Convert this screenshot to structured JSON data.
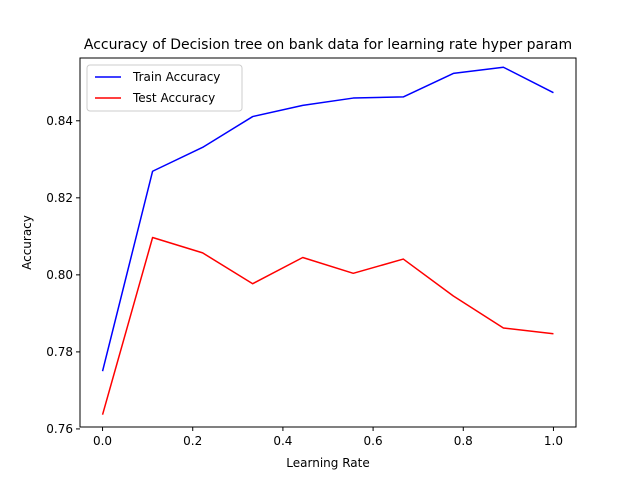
{
  "chart_data": {
    "type": "line",
    "title": "Accuracy of Decision tree on bank data for learning rate hyper param",
    "xlabel": "Learning Rate",
    "ylabel": "Accuracy",
    "xlim": [
      -0.05,
      1.05
    ],
    "ylim": [
      0.7605,
      0.8563
    ],
    "x_ticks": [
      0.0,
      0.2,
      0.4,
      0.6,
      0.8,
      1.0
    ],
    "x_tick_labels": [
      "0.0",
      "0.2",
      "0.4",
      "0.6",
      "0.8",
      "1.0"
    ],
    "y_ticks": [
      0.76,
      0.78,
      0.8,
      0.82,
      0.84
    ],
    "y_tick_labels": [
      "0.76",
      "0.78",
      "0.80",
      "0.82",
      "0.84"
    ],
    "grid": false,
    "legend_position": "top-left",
    "x": [
      0.0,
      0.111,
      0.222,
      0.333,
      0.444,
      0.556,
      0.667,
      0.778,
      0.889,
      1.0
    ],
    "series": [
      {
        "name": "Train Accuracy",
        "color": "#0000ff",
        "values": [
          0.775,
          0.8269,
          0.8331,
          0.8411,
          0.844,
          0.8459,
          0.8462,
          0.8523,
          0.8539,
          0.8473
        ]
      },
      {
        "name": "Test Accuracy",
        "color": "#ff0000",
        "values": [
          0.7637,
          0.8097,
          0.8057,
          0.7977,
          0.8045,
          0.8004,
          0.8041,
          0.7945,
          0.7862,
          0.7847
        ]
      }
    ]
  }
}
